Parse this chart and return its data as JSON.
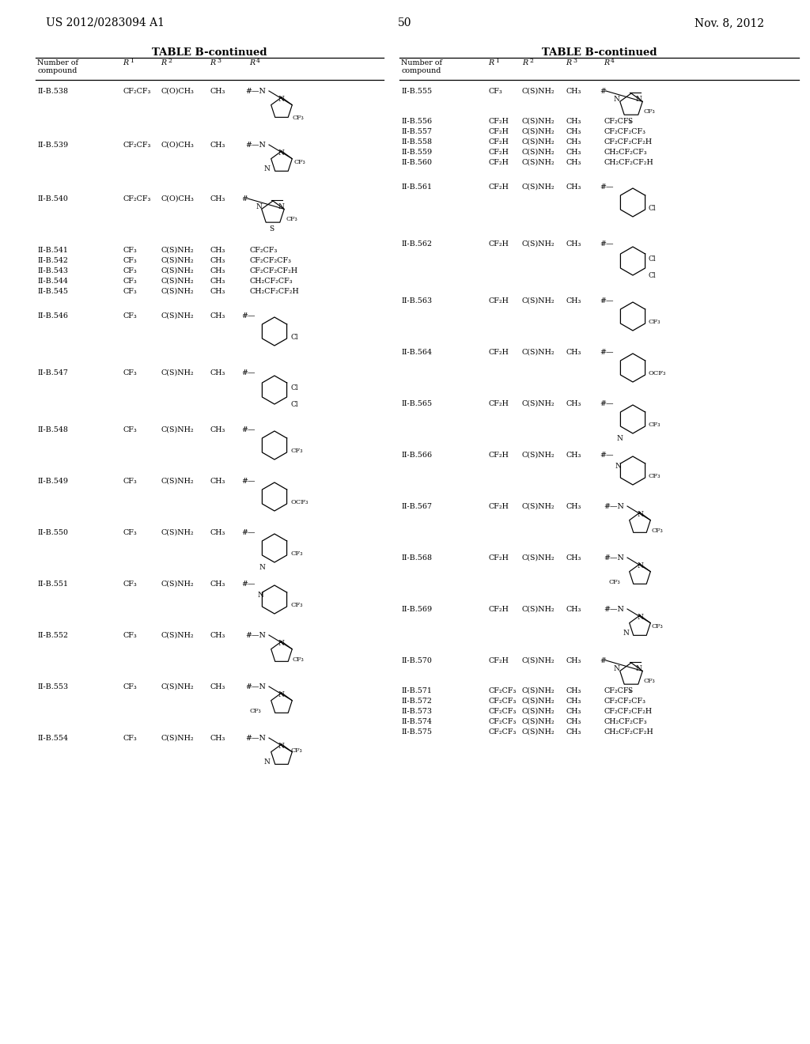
{
  "page_header_left": "US 2012/0283094 A1",
  "page_header_right": "Nov. 8, 2012",
  "page_number": "50",
  "table_title": "TABLE B-continued",
  "background_color": "#ffffff"
}
